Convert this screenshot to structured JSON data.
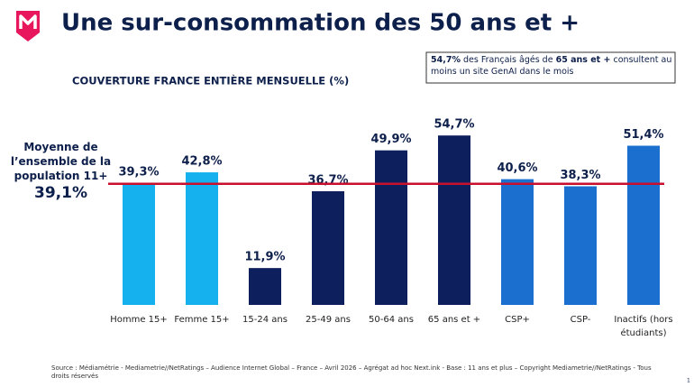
{
  "chart_data": {
    "type": "bar",
    "title": "Une sur-consommation des 50 ans et +",
    "subtitle": "COUVERTURE FRANCE ENTIÈRE MENSUELLE (%)",
    "categories": [
      "Homme 15+",
      "Femme 15+",
      "15-24 ans",
      "25-49 ans",
      "50-64 ans",
      "65 ans et +",
      "CSP+",
      "CSP-",
      "Inactifs (hors étudiants)"
    ],
    "values": [
      39.3,
      42.8,
      11.9,
      36.7,
      49.9,
      54.7,
      40.6,
      38.3,
      51.4
    ],
    "value_labels": [
      "39,3%",
      "42,8%",
      "11,9%",
      "36,7%",
      "49,9%",
      "54,7%",
      "40,6%",
      "38,3%",
      "51,4%"
    ],
    "colors": [
      "#14b1ee",
      "#14b1ee",
      "#0d1f5c",
      "#0d1f5c",
      "#0d1f5c",
      "#0d1f5c",
      "#1a6fcf",
      "#1a6fcf",
      "#1a6fcf"
    ],
    "ylim": [
      0,
      60
    ],
    "reference": {
      "value": 39.1,
      "label": "39,1%",
      "text": "Moyenne de l’ensemble de la population 11+",
      "color": "#c8102e"
    },
    "annotation": [
      {
        "text": "54,7%",
        "bold": true
      },
      {
        "text": " des Français âgés de ",
        "bold": false
      },
      {
        "text": "65 ans et +",
        "bold": true
      },
      {
        "text": " consultent au moins un site GenAI dans le mois",
        "bold": false
      }
    ],
    "source": "Source : Médiamétrie - Mediametrie//NetRatings – Audience Internet Global – France – Avril 2026  – Agrégat ad hoc Next.ink - Base : 11 ans et plus – Copyright Mediametrie//NetRatings - Tous droits réservés",
    "page_number": "1"
  }
}
